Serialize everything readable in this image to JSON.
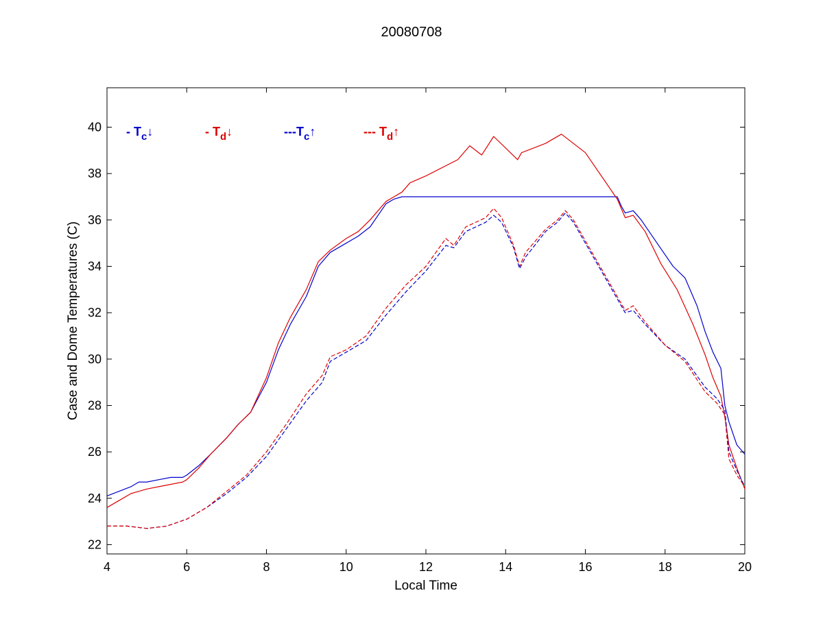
{
  "chart_data": {
    "type": "line",
    "title": "20080708",
    "xlabel": "Local Time",
    "ylabel": "Case and Dome Temperatures (C)",
    "xlim": [
      4,
      20
    ],
    "ylim": [
      21.6,
      41.7
    ],
    "xticks": [
      4,
      6,
      8,
      10,
      12,
      14,
      16,
      18,
      20
    ],
    "yticks": [
      22,
      24,
      26,
      28,
      30,
      32,
      34,
      36,
      38,
      40
    ],
    "grid": false,
    "legend_position": "top-left inside",
    "series": [
      {
        "name": "- Tc↓",
        "legend": {
          "prefix": "- T",
          "sub": "c",
          "arrow": "↓"
        },
        "color": "#0000cc",
        "dash": "solid",
        "x": [
          4.0,
          4.3,
          4.6,
          4.8,
          5.0,
          5.3,
          5.6,
          5.9,
          6.0,
          6.3,
          6.6,
          7.0,
          7.3,
          7.6,
          8.0,
          8.3,
          8.6,
          9.0,
          9.3,
          9.6,
          10.0,
          10.3,
          10.6,
          11.0,
          11.2,
          11.4,
          11.6,
          12.0,
          13.0,
          14.0,
          15.0,
          16.0,
          16.7,
          16.8,
          16.9,
          17.0,
          17.2,
          17.4,
          17.8,
          18.2,
          18.5,
          18.8,
          19.0,
          19.2,
          19.4,
          19.5,
          19.6,
          19.8,
          20.0
        ],
        "y": [
          24.1,
          24.3,
          24.5,
          24.7,
          24.7,
          24.8,
          24.9,
          24.9,
          25.0,
          25.4,
          25.9,
          26.6,
          27.2,
          27.7,
          29.0,
          30.4,
          31.5,
          32.7,
          34.0,
          34.6,
          35.0,
          35.3,
          35.7,
          36.7,
          36.9,
          37.0,
          37.0,
          37.0,
          37.0,
          37.0,
          37.0,
          37.0,
          37.0,
          37.0,
          36.6,
          36.3,
          36.4,
          36.0,
          35.0,
          34.0,
          33.5,
          32.3,
          31.2,
          30.3,
          29.6,
          28.0,
          27.3,
          26.3,
          25.9
        ]
      },
      {
        "name": "- Td↓",
        "legend": {
          "prefix": "- T",
          "sub": "d",
          "arrow": "↓"
        },
        "color": "#dd0000",
        "dash": "solid",
        "x": [
          4.0,
          4.3,
          4.6,
          4.8,
          5.0,
          5.3,
          5.6,
          5.9,
          6.0,
          6.3,
          6.6,
          7.0,
          7.3,
          7.6,
          8.0,
          8.3,
          8.6,
          9.0,
          9.3,
          9.6,
          10.0,
          10.3,
          10.6,
          11.0,
          11.2,
          11.4,
          11.6,
          12.0,
          12.8,
          13.1,
          13.4,
          13.7,
          14.3,
          14.4,
          15.0,
          15.4,
          16.0,
          16.8,
          17.0,
          17.2,
          17.5,
          17.9,
          18.3,
          18.7,
          19.0,
          19.2,
          19.4,
          19.5,
          19.6,
          19.8,
          20.0
        ],
        "y": [
          23.6,
          23.9,
          24.2,
          24.3,
          24.4,
          24.5,
          24.6,
          24.7,
          24.8,
          25.3,
          25.9,
          26.6,
          27.2,
          27.7,
          29.2,
          30.7,
          31.8,
          33.0,
          34.2,
          34.7,
          35.2,
          35.5,
          36.0,
          36.8,
          37.0,
          37.2,
          37.6,
          37.9,
          38.6,
          39.2,
          38.8,
          39.6,
          38.6,
          38.9,
          39.3,
          39.7,
          38.9,
          36.9,
          36.1,
          36.2,
          35.5,
          34.1,
          33.0,
          31.5,
          30.2,
          29.2,
          28.4,
          27.5,
          26.3,
          25.3,
          24.4
        ]
      },
      {
        "name": "---Tc↑",
        "legend": {
          "prefix": "---T",
          "sub": "c",
          "arrow": "↑"
        },
        "color": "#0000cc",
        "dash": "dashed",
        "x": [
          4.0,
          4.5,
          5.0,
          5.5,
          6.0,
          6.5,
          7.0,
          7.5,
          8.0,
          8.5,
          9.0,
          9.4,
          9.6,
          10.0,
          10.5,
          11.0,
          11.5,
          12.0,
          12.5,
          12.7,
          13.0,
          13.5,
          13.7,
          13.9,
          14.2,
          14.35,
          14.5,
          15.0,
          15.3,
          15.5,
          15.7,
          16.0,
          16.5,
          17.0,
          17.2,
          17.5,
          18.0,
          18.5,
          19.0,
          19.3,
          19.5,
          19.6,
          19.8,
          20.0
        ],
        "y": [
          22.8,
          22.8,
          22.7,
          22.8,
          23.1,
          23.6,
          24.2,
          24.9,
          25.8,
          27.0,
          28.2,
          29.0,
          29.9,
          30.3,
          30.8,
          31.9,
          32.9,
          33.8,
          34.9,
          34.8,
          35.5,
          35.9,
          36.2,
          35.9,
          34.8,
          33.9,
          34.4,
          35.5,
          35.9,
          36.3,
          35.9,
          35.0,
          33.5,
          32.0,
          32.1,
          31.5,
          30.6,
          30.0,
          28.8,
          28.3,
          27.8,
          26.0,
          25.2,
          24.5
        ]
      },
      {
        "name": "--- Td↑",
        "legend": {
          "prefix": "--- T",
          "sub": "d",
          "arrow": "↑"
        },
        "color": "#dd0000",
        "dash": "dashed",
        "x": [
          4.0,
          4.5,
          5.0,
          5.5,
          6.0,
          6.5,
          7.0,
          7.5,
          8.0,
          8.5,
          9.0,
          9.4,
          9.6,
          10.0,
          10.5,
          11.0,
          11.5,
          12.0,
          12.5,
          12.7,
          13.0,
          13.5,
          13.7,
          13.9,
          14.2,
          14.35,
          14.5,
          15.0,
          15.3,
          15.5,
          15.7,
          16.0,
          16.5,
          17.0,
          17.2,
          17.5,
          18.0,
          18.5,
          19.0,
          19.3,
          19.5,
          19.6,
          19.8,
          20.0
        ],
        "y": [
          22.8,
          22.8,
          22.7,
          22.8,
          23.1,
          23.6,
          24.3,
          25.0,
          26.0,
          27.2,
          28.5,
          29.3,
          30.1,
          30.4,
          31.0,
          32.2,
          33.2,
          34.0,
          35.2,
          34.9,
          35.7,
          36.1,
          36.5,
          36.1,
          34.9,
          34.0,
          34.6,
          35.6,
          36.0,
          36.4,
          36.0,
          35.1,
          33.6,
          32.1,
          32.3,
          31.6,
          30.6,
          29.9,
          28.6,
          28.1,
          27.6,
          25.7,
          25.0,
          24.5
        ]
      }
    ]
  }
}
